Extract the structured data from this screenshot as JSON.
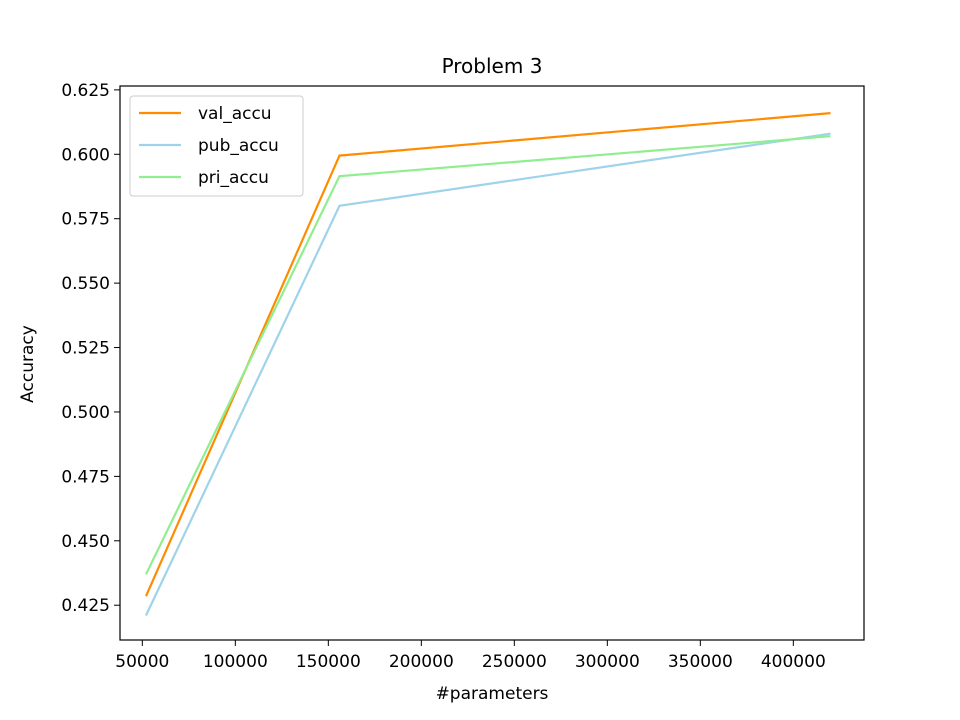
{
  "chart_data": {
    "type": "line",
    "title": "Problem 3",
    "xlabel": "#parameters",
    "ylabel": "Accuracy",
    "x": [
      52000,
      156000,
      420000
    ],
    "xlim": [
      38000,
      438000
    ],
    "ylim": [
      0.4115,
      0.6265
    ],
    "xticks": [
      50000,
      100000,
      150000,
      200000,
      250000,
      300000,
      350000,
      400000
    ],
    "yticks": [
      0.425,
      0.45,
      0.475,
      0.5,
      0.525,
      0.55,
      0.575,
      0.6,
      0.625
    ],
    "xtick_labels": [
      "50000",
      "100000",
      "150000",
      "200000",
      "250000",
      "300000",
      "350000",
      "400000"
    ],
    "ytick_labels": [
      "0.425",
      "0.450",
      "0.475",
      "0.500",
      "0.525",
      "0.550",
      "0.575",
      "0.600",
      "0.625"
    ],
    "grid": false,
    "legend_position": "upper-left",
    "series": [
      {
        "name": "val_accu",
        "values": [
          0.4285,
          0.5995,
          0.616
        ],
        "color": "#ff8c00"
      },
      {
        "name": "pub_accu",
        "values": [
          0.421,
          0.58,
          0.608
        ],
        "color": "#9fd3ea"
      },
      {
        "name": "pri_accu",
        "values": [
          0.437,
          0.5915,
          0.607
        ],
        "color": "#90ee90"
      }
    ]
  }
}
